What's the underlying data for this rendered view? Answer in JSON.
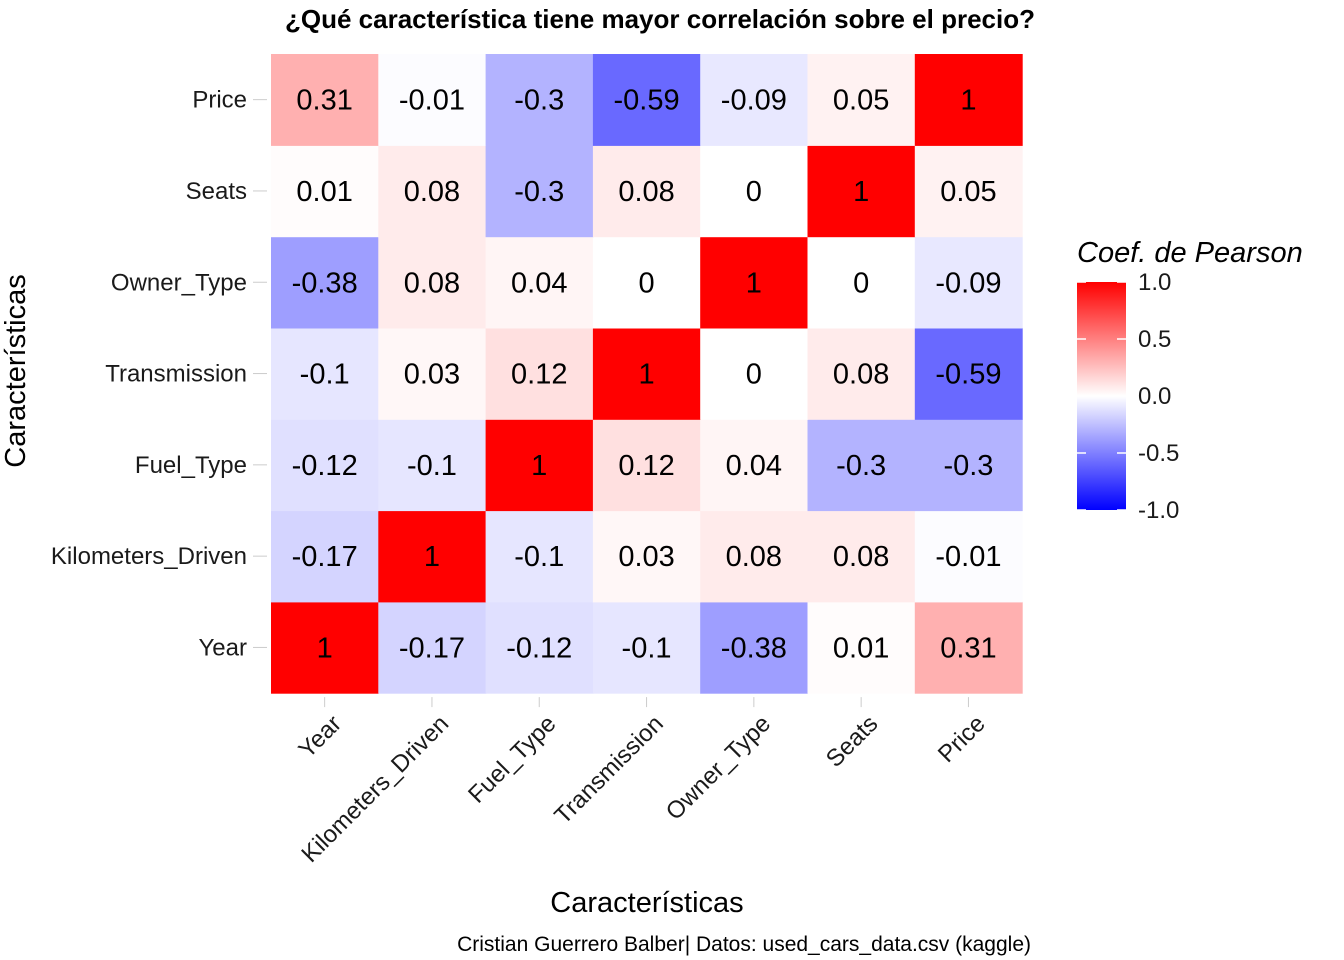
{
  "chart_data": {
    "type": "heatmap",
    "title": "¿Qué característica tiene mayor correlación sobre el precio?",
    "xlabel": "Características",
    "ylabel": "Características",
    "caption": "Cristian Guerrero Balber| Datos: used_cars_data.csv (kaggle)",
    "x_categories": [
      "Year",
      "Kilometers_Driven",
      "Fuel_Type",
      "Transmission",
      "Owner_Type",
      "Seats",
      "Price"
    ],
    "y_categories": [
      "Year",
      "Kilometers_Driven",
      "Fuel_Type",
      "Transmission",
      "Owner_Type",
      "Seats",
      "Price"
    ],
    "matrix": [
      [
        1,
        -0.17,
        -0.12,
        -0.1,
        -0.38,
        0.01,
        0.31
      ],
      [
        -0.17,
        1,
        -0.1,
        0.03,
        0.08,
        0.08,
        -0.01
      ],
      [
        -0.12,
        -0.1,
        1,
        0.12,
        0.04,
        -0.3,
        -0.3
      ],
      [
        -0.1,
        0.03,
        0.12,
        1,
        0,
        0.08,
        -0.59
      ],
      [
        -0.38,
        0.08,
        0.04,
        0,
        1,
        0,
        -0.09
      ],
      [
        0.01,
        0.08,
        -0.3,
        0.08,
        0,
        1,
        0.05
      ],
      [
        0.31,
        -0.01,
        -0.3,
        -0.59,
        -0.09,
        0.05,
        1
      ]
    ],
    "legend": {
      "title": "Coef. de Pearson",
      "ticks": [
        "1.0",
        "0.5",
        "0.0",
        "-0.5",
        "-1.0"
      ],
      "range": [
        -1,
        1
      ],
      "colors": {
        "low": "#0000ff",
        "mid": "#ffffff",
        "high": "#ff0000"
      },
      "placement": "right"
    },
    "grid": false
  }
}
